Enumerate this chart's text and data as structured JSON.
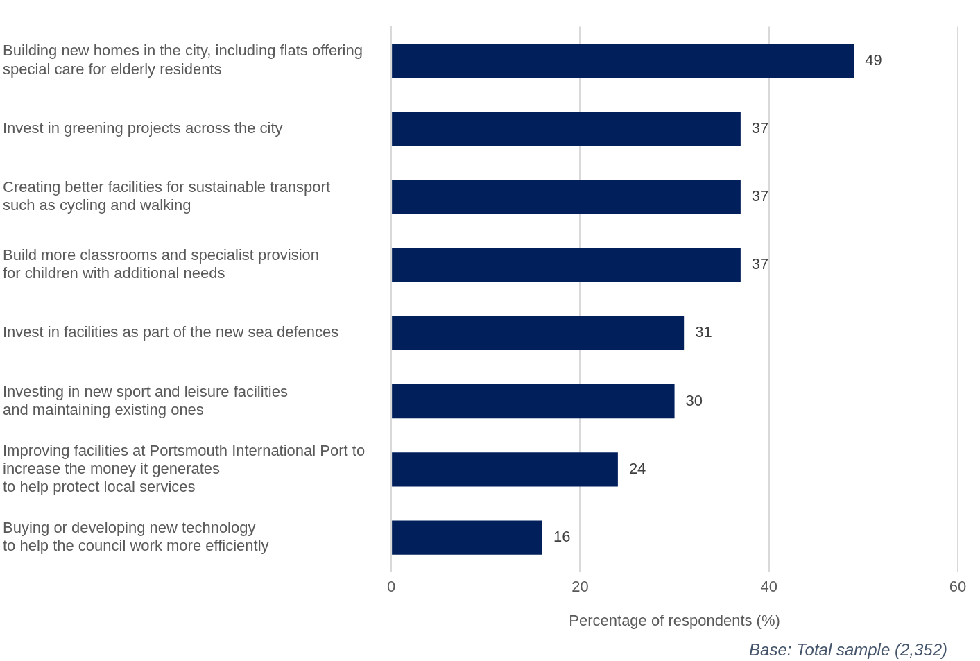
{
  "chart_data": {
    "type": "bar",
    "orientation": "horizontal",
    "categories": [
      "Building new homes in the city, including flats offering\nspecial care for elderly residents",
      "Invest in greening projects across the city",
      "Creating better facilities for sustainable transport\nsuch as cycling and walking",
      "Build more classrooms and specialist provision\nfor children with additional needs",
      "Invest in facilities as part of the new sea defences",
      "Investing in new sport and leisure facilities\nand maintaining existing ones",
      "Improving facilities at Portsmouth International Port to\nincrease the money it generates\nto help protect local services",
      "Buying or developing new technology\nto help the council work more efficiently"
    ],
    "values": [
      49,
      37,
      37,
      37,
      31,
      30,
      24,
      16
    ],
    "color": "#001f5b",
    "xlim": [
      0,
      60
    ],
    "xticks": [
      0,
      20,
      40,
      60
    ],
    "xlabel": "Percentage of respondents (%)",
    "grid": "x",
    "legend": false,
    "data_labels": true,
    "annotations": [
      "Base: Total sample (2,352)"
    ]
  }
}
